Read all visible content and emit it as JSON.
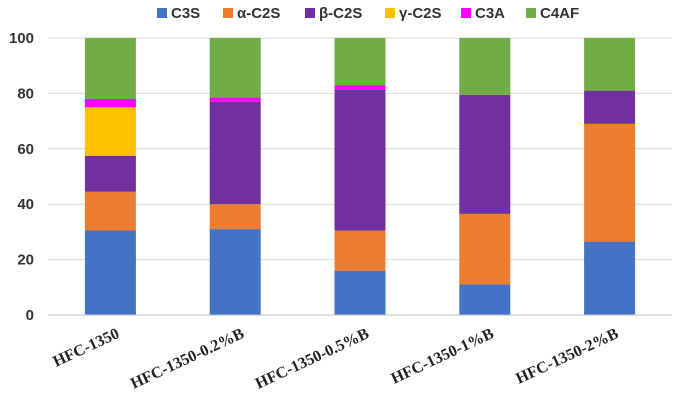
{
  "chart_data": {
    "type": "bar",
    "stacked": true,
    "categories": [
      "HFC-1350",
      "HFC-1350-0.2%B",
      "HFC-1350-0.5%B",
      "HFC-1350-1%B",
      "HFC-1350-2%B"
    ],
    "series": [
      {
        "name": "C3S",
        "color": "#4472C4",
        "values": [
          30.5,
          31,
          16,
          11,
          26.5
        ]
      },
      {
        "name": "α-C2S",
        "color": "#ED7D31",
        "values": [
          14,
          9,
          14.5,
          25.5,
          42.5
        ]
      },
      {
        "name": "β-C2S",
        "color": "#7030A0",
        "values": [
          13,
          37,
          51,
          43,
          12
        ]
      },
      {
        "name": "γ-C2S",
        "color": "#FFC000",
        "values": [
          17.5,
          0,
          0,
          0,
          0
        ]
      },
      {
        "name": "C3A",
        "color": "#FF00FF",
        "values": [
          3,
          1.5,
          1.5,
          0,
          0
        ]
      },
      {
        "name": "C4AF",
        "color": "#70AD47",
        "values": [
          22,
          21.5,
          17,
          20.5,
          19
        ]
      }
    ],
    "ylim": [
      0,
      100
    ],
    "yticks": [
      "0",
      "20",
      "40",
      "60",
      "80",
      "100"
    ],
    "ytick_values": [
      0,
      20,
      40,
      60,
      80,
      100
    ],
    "grid": true,
    "legend": "top",
    "title": "",
    "xlabel": "",
    "ylabel": ""
  }
}
